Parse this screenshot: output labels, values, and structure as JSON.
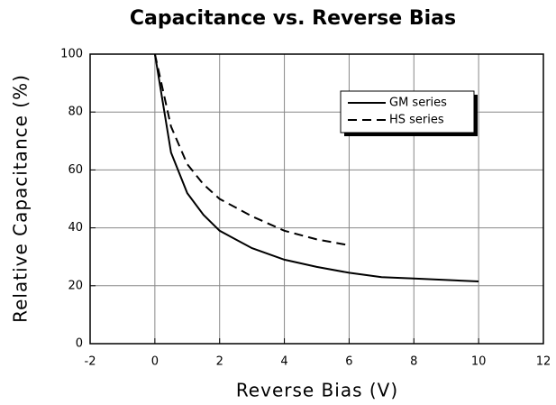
{
  "chart_data": {
    "type": "line",
    "title": "Capacitance vs. Reverse Bias",
    "x_label": "Reverse Bias (V)",
    "y_label": "Relative Capacitance (%)",
    "xlim": [
      -2,
      12
    ],
    "xticks": [
      -2,
      0,
      2,
      4,
      6,
      8,
      10,
      12
    ],
    "ylim": [
      0,
      100
    ],
    "yticks": [
      0,
      20,
      40,
      60,
      80,
      100
    ],
    "grid": true,
    "legend": "upper right",
    "series": [
      {
        "name": "GM series",
        "color": "#000000",
        "dash": "solid",
        "x": [
          0,
          0.5,
          1,
          1.5,
          2,
          3,
          4,
          5,
          6,
          7,
          8,
          9,
          10
        ],
        "values": [
          100,
          66,
          52,
          44.5,
          39,
          33,
          29,
          26.5,
          24.5,
          23,
          22.5,
          22,
          21.5
        ]
      },
      {
        "name": "HS series",
        "color": "#000000",
        "dash": "dashed",
        "x": [
          0,
          0.5,
          1,
          1.5,
          2,
          3,
          4,
          5,
          6
        ],
        "values": [
          100,
          75,
          62,
          55,
          50,
          44,
          39,
          36,
          34
        ]
      }
    ]
  }
}
